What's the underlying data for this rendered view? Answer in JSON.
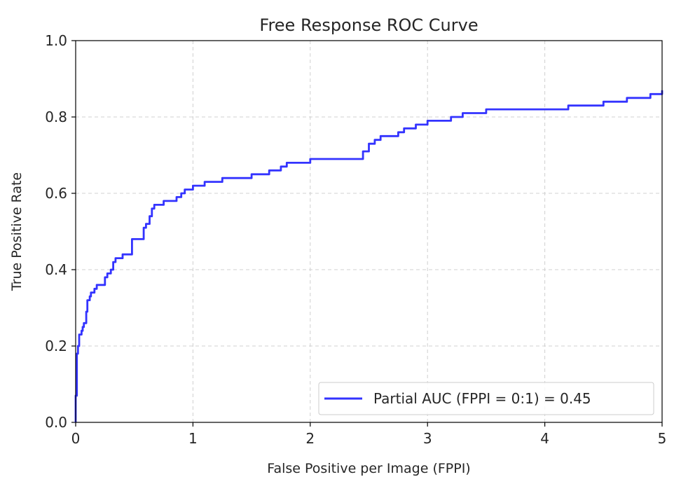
{
  "chart_data": {
    "type": "line",
    "title": "Free Response ROC Curve",
    "xlabel": "False Positive per Image (FPPI)",
    "ylabel": "True Positive Rate",
    "xlim": [
      0,
      5
    ],
    "ylim": [
      0,
      1
    ],
    "x_ticks": [
      "0",
      "1",
      "2",
      "3",
      "4",
      "5"
    ],
    "y_ticks": [
      "0.0",
      "0.2",
      "0.4",
      "0.6",
      "0.8",
      "1.0"
    ],
    "grid": true,
    "legend_position": "lower-right",
    "series": [
      {
        "name": "Partial AUC (FPPI = 0:1) = 0.45",
        "color": "#3333ff",
        "x": [
          0.0,
          0.01,
          0.01,
          0.02,
          0.03,
          0.05,
          0.06,
          0.07,
          0.09,
          0.1,
          0.11,
          0.12,
          0.13,
          0.16,
          0.18,
          0.2,
          0.25,
          0.27,
          0.3,
          0.32,
          0.34,
          0.35,
          0.4,
          0.43,
          0.48,
          0.51,
          0.58,
          0.6,
          0.63,
          0.65,
          0.67,
          0.7,
          0.75,
          0.8,
          0.86,
          0.9,
          0.93,
          0.97,
          1.0,
          1.05,
          1.1,
          1.15,
          1.25,
          1.3,
          1.5,
          1.65,
          1.75,
          1.8,
          2.0,
          2.1,
          2.3,
          2.4,
          2.45,
          2.5,
          2.55,
          2.6,
          2.65,
          2.75,
          2.8,
          2.9,
          3.0,
          3.2,
          3.3,
          3.4,
          3.5,
          3.7,
          3.8,
          4.0,
          4.1,
          4.15,
          4.2,
          4.3,
          4.4,
          4.5,
          4.6,
          4.7,
          4.8,
          4.85,
          4.9,
          4.95,
          5.0
        ],
        "y": [
          0.07,
          0.16,
          0.18,
          0.2,
          0.23,
          0.24,
          0.25,
          0.26,
          0.29,
          0.32,
          0.32,
          0.33,
          0.34,
          0.35,
          0.36,
          0.36,
          0.38,
          0.39,
          0.4,
          0.42,
          0.43,
          0.43,
          0.44,
          0.44,
          0.48,
          0.48,
          0.51,
          0.52,
          0.54,
          0.56,
          0.57,
          0.57,
          0.58,
          0.58,
          0.59,
          0.6,
          0.61,
          0.61,
          0.62,
          0.62,
          0.63,
          0.63,
          0.64,
          0.64,
          0.65,
          0.66,
          0.67,
          0.68,
          0.69,
          0.69,
          0.69,
          0.69,
          0.71,
          0.73,
          0.74,
          0.75,
          0.75,
          0.76,
          0.77,
          0.78,
          0.79,
          0.8,
          0.81,
          0.81,
          0.82,
          0.82,
          0.82,
          0.82,
          0.82,
          0.82,
          0.83,
          0.83,
          0.83,
          0.84,
          0.84,
          0.85,
          0.85,
          0.85,
          0.86,
          0.86,
          0.87
        ]
      }
    ]
  }
}
